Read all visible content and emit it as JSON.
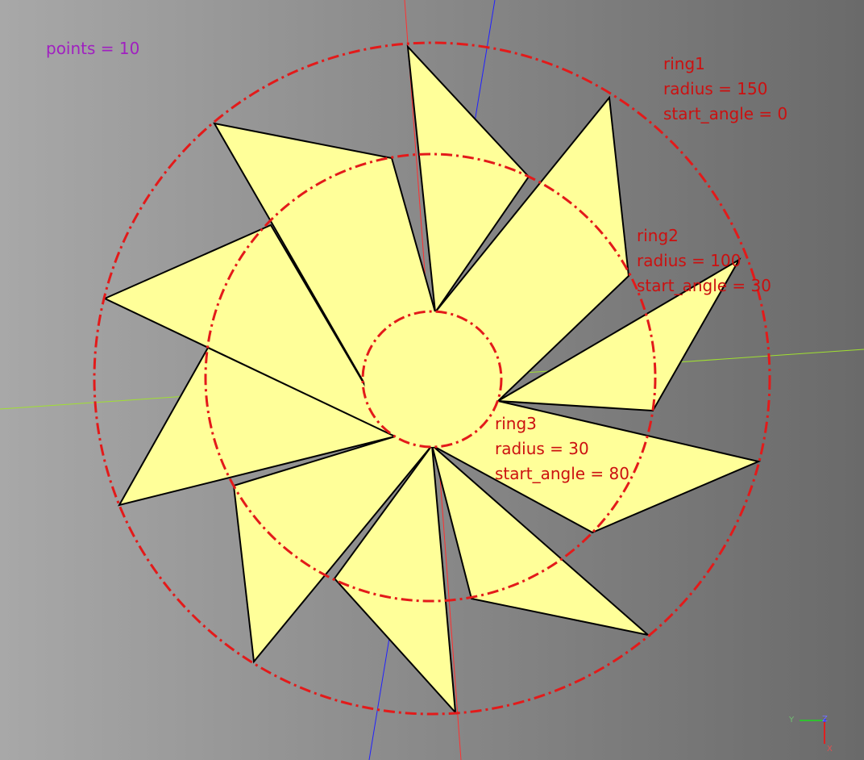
{
  "scene": {
    "points_label": "points = 10",
    "colors": {
      "background_left": "#a8a8a8",
      "background_right": "#6a6a6a",
      "star_fill": "#ffff99",
      "ring": "#e31a1a",
      "label_ring": "#cc1010",
      "label_points": "#a020c0",
      "axis_x": "#ff3030",
      "axis_y": "#a0e030",
      "axis_z": "#2020ff"
    },
    "rings": [
      {
        "name": "ring1",
        "radius_text": "radius = 150",
        "angle_text": "start_angle = 0"
      },
      {
        "name": "ring2",
        "radius_text": "radius = 100",
        "angle_text": "start_angle = 30"
      },
      {
        "name": "ring3",
        "radius_text": "radius = 30",
        "angle_text": "start_angle = 80"
      }
    ]
  },
  "gizmo": {
    "y": "Y",
    "z": "Z",
    "x": "X"
  }
}
